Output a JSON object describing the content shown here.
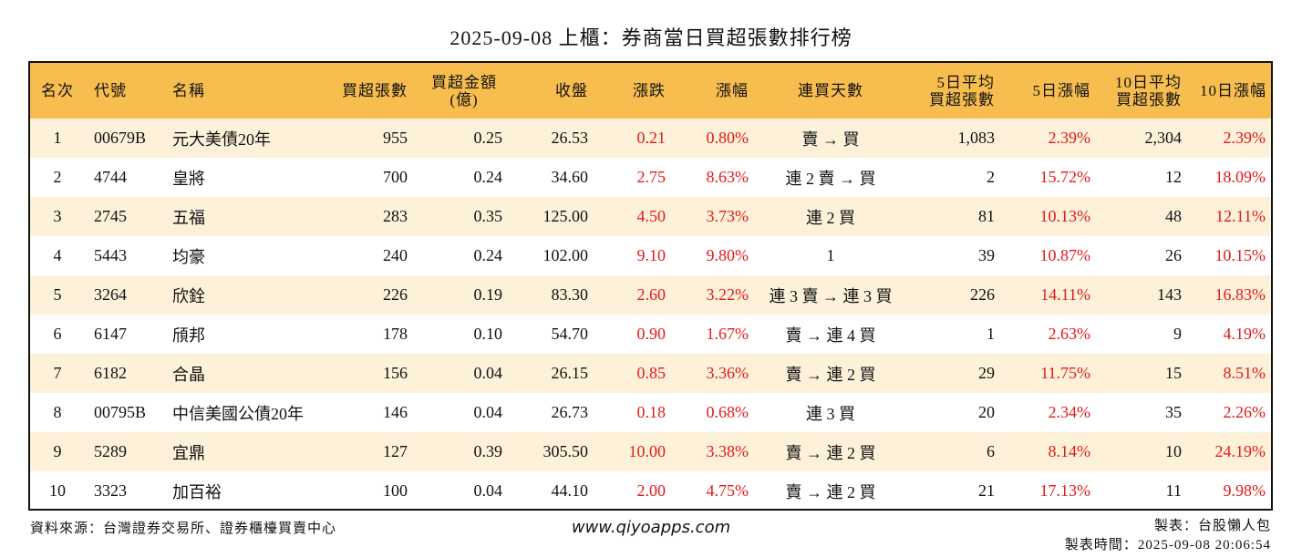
{
  "title": "2025-09-08 上櫃：券商當日買超張數排行榜",
  "headers": {
    "rank": "名次",
    "code": "代號",
    "name": "名稱",
    "buy_lots": "買超張數",
    "buy_amount_line1": "買超金額",
    "buy_amount_line2": "(億)",
    "close": "收盤",
    "change": "漲跌",
    "change_pct": "漲幅",
    "streak": "連買天數",
    "avg5_line1": "5日平均",
    "avg5_line2": "買超張數",
    "pct5": "5日漲幅",
    "avg10_line1": "10日平均",
    "avg10_line2": "買超張數",
    "pct10": "10日漲幅"
  },
  "rows": [
    {
      "rank": "1",
      "code": "00679B",
      "name": "元大美債20年",
      "buy_lots": "955",
      "amount": "0.25",
      "close": "26.53",
      "change": "0.21",
      "change_pct": "0.80%",
      "streak": "賣 → 買",
      "avg5": "1,083",
      "pct5": "2.39%",
      "avg10": "2,304",
      "pct10": "2.39%"
    },
    {
      "rank": "2",
      "code": "4744",
      "name": "皇將",
      "buy_lots": "700",
      "amount": "0.24",
      "close": "34.60",
      "change": "2.75",
      "change_pct": "8.63%",
      "streak": "連 2 賣 → 買",
      "avg5": "2",
      "pct5": "15.72%",
      "avg10": "12",
      "pct10": "18.09%"
    },
    {
      "rank": "3",
      "code": "2745",
      "name": "五福",
      "buy_lots": "283",
      "amount": "0.35",
      "close": "125.00",
      "change": "4.50",
      "change_pct": "3.73%",
      "streak": "連 2 買",
      "avg5": "81",
      "pct5": "10.13%",
      "avg10": "48",
      "pct10": "12.11%"
    },
    {
      "rank": "4",
      "code": "5443",
      "name": "均豪",
      "buy_lots": "240",
      "amount": "0.24",
      "close": "102.00",
      "change": "9.10",
      "change_pct": "9.80%",
      "streak": "1",
      "avg5": "39",
      "pct5": "10.87%",
      "avg10": "26",
      "pct10": "10.15%"
    },
    {
      "rank": "5",
      "code": "3264",
      "name": "欣銓",
      "buy_lots": "226",
      "amount": "0.19",
      "close": "83.30",
      "change": "2.60",
      "change_pct": "3.22%",
      "streak": "連 3 賣 → 連 3 買",
      "avg5": "226",
      "pct5": "14.11%",
      "avg10": "143",
      "pct10": "16.83%"
    },
    {
      "rank": "6",
      "code": "6147",
      "name": "頎邦",
      "buy_lots": "178",
      "amount": "0.10",
      "close": "54.70",
      "change": "0.90",
      "change_pct": "1.67%",
      "streak": "賣 → 連 4 買",
      "avg5": "1",
      "pct5": "2.63%",
      "avg10": "9",
      "pct10": "4.19%"
    },
    {
      "rank": "7",
      "code": "6182",
      "name": "合晶",
      "buy_lots": "156",
      "amount": "0.04",
      "close": "26.15",
      "change": "0.85",
      "change_pct": "3.36%",
      "streak": "賣 → 連 2 買",
      "avg5": "29",
      "pct5": "11.75%",
      "avg10": "15",
      "pct10": "8.51%"
    },
    {
      "rank": "8",
      "code": "00795B",
      "name": "中信美國公債20年",
      "buy_lots": "146",
      "amount": "0.04",
      "close": "26.73",
      "change": "0.18",
      "change_pct": "0.68%",
      "streak": "連 3 買",
      "avg5": "20",
      "pct5": "2.34%",
      "avg10": "35",
      "pct10": "2.26%"
    },
    {
      "rank": "9",
      "code": "5289",
      "name": "宜鼎",
      "buy_lots": "127",
      "amount": "0.39",
      "close": "305.50",
      "change": "10.00",
      "change_pct": "3.38%",
      "streak": "賣 → 連 2 買",
      "avg5": "6",
      "pct5": "8.14%",
      "avg10": "10",
      "pct10": "24.19%"
    },
    {
      "rank": "10",
      "code": "3323",
      "name": "加百裕",
      "buy_lots": "100",
      "amount": "0.04",
      "close": "44.10",
      "change": "2.00",
      "change_pct": "4.75%",
      "streak": "賣 → 連 2 買",
      "avg5": "21",
      "pct5": "17.13%",
      "avg10": "11",
      "pct10": "9.98%"
    }
  ],
  "footer": {
    "source": "資料來源：台灣證券交易所、證券櫃檯買賣中心",
    "website": "www.qiyoapps.com",
    "maker": "製表：台股懶人包",
    "made_time": "製表時間：2025-09-08 20:06:54"
  },
  "colors": {
    "header_bg": "#f7bd4f",
    "row_alt_bg": "#fdf1da",
    "up_red": "#e31919"
  }
}
